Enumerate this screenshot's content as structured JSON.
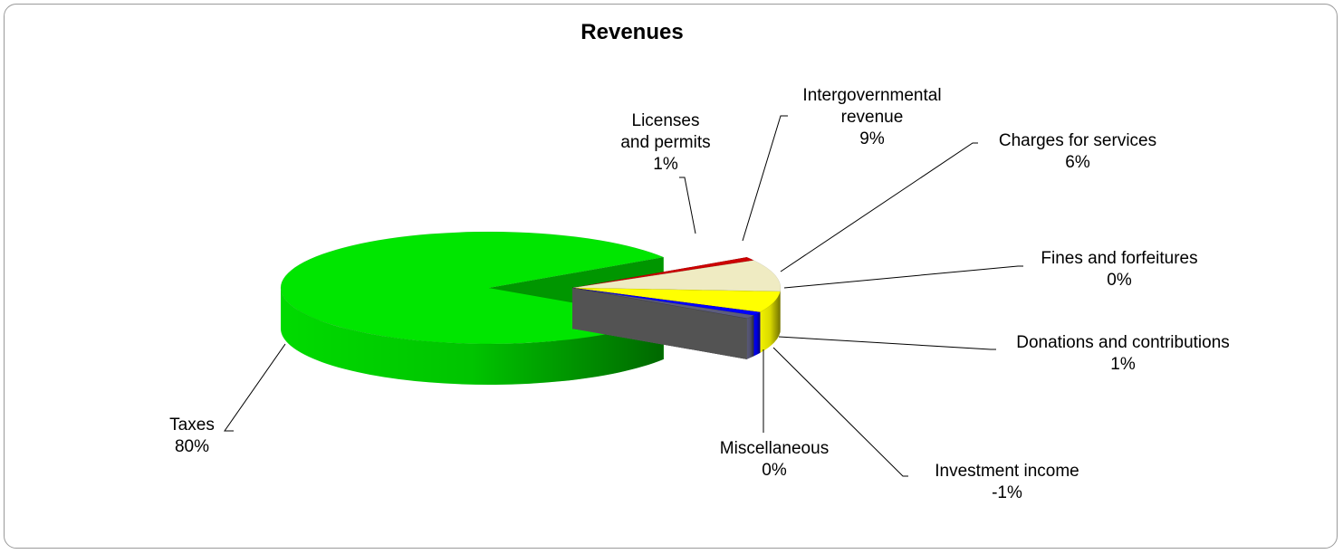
{
  "chart_data": {
    "type": "pie3d",
    "title": "Revenues",
    "categories": [
      "Taxes",
      "Licenses and permits",
      "Intergovernmental revenue",
      "Charges for services",
      "Fines and forfeitures",
      "Donations and contributions",
      "Investment income",
      "Miscellaneous"
    ],
    "values": [
      80,
      1,
      9,
      6,
      0,
      1,
      -1,
      0
    ],
    "value_labels": [
      "80%",
      "1%",
      "9%",
      "6%",
      "0%",
      "1%",
      "-1%",
      "0%"
    ],
    "colors": [
      "#00e600",
      "#cc0000",
      "#efebc2",
      "#ffff00",
      "#ff00ff",
      "#0000ff",
      "#5c5c7e",
      "#808080"
    ]
  }
}
